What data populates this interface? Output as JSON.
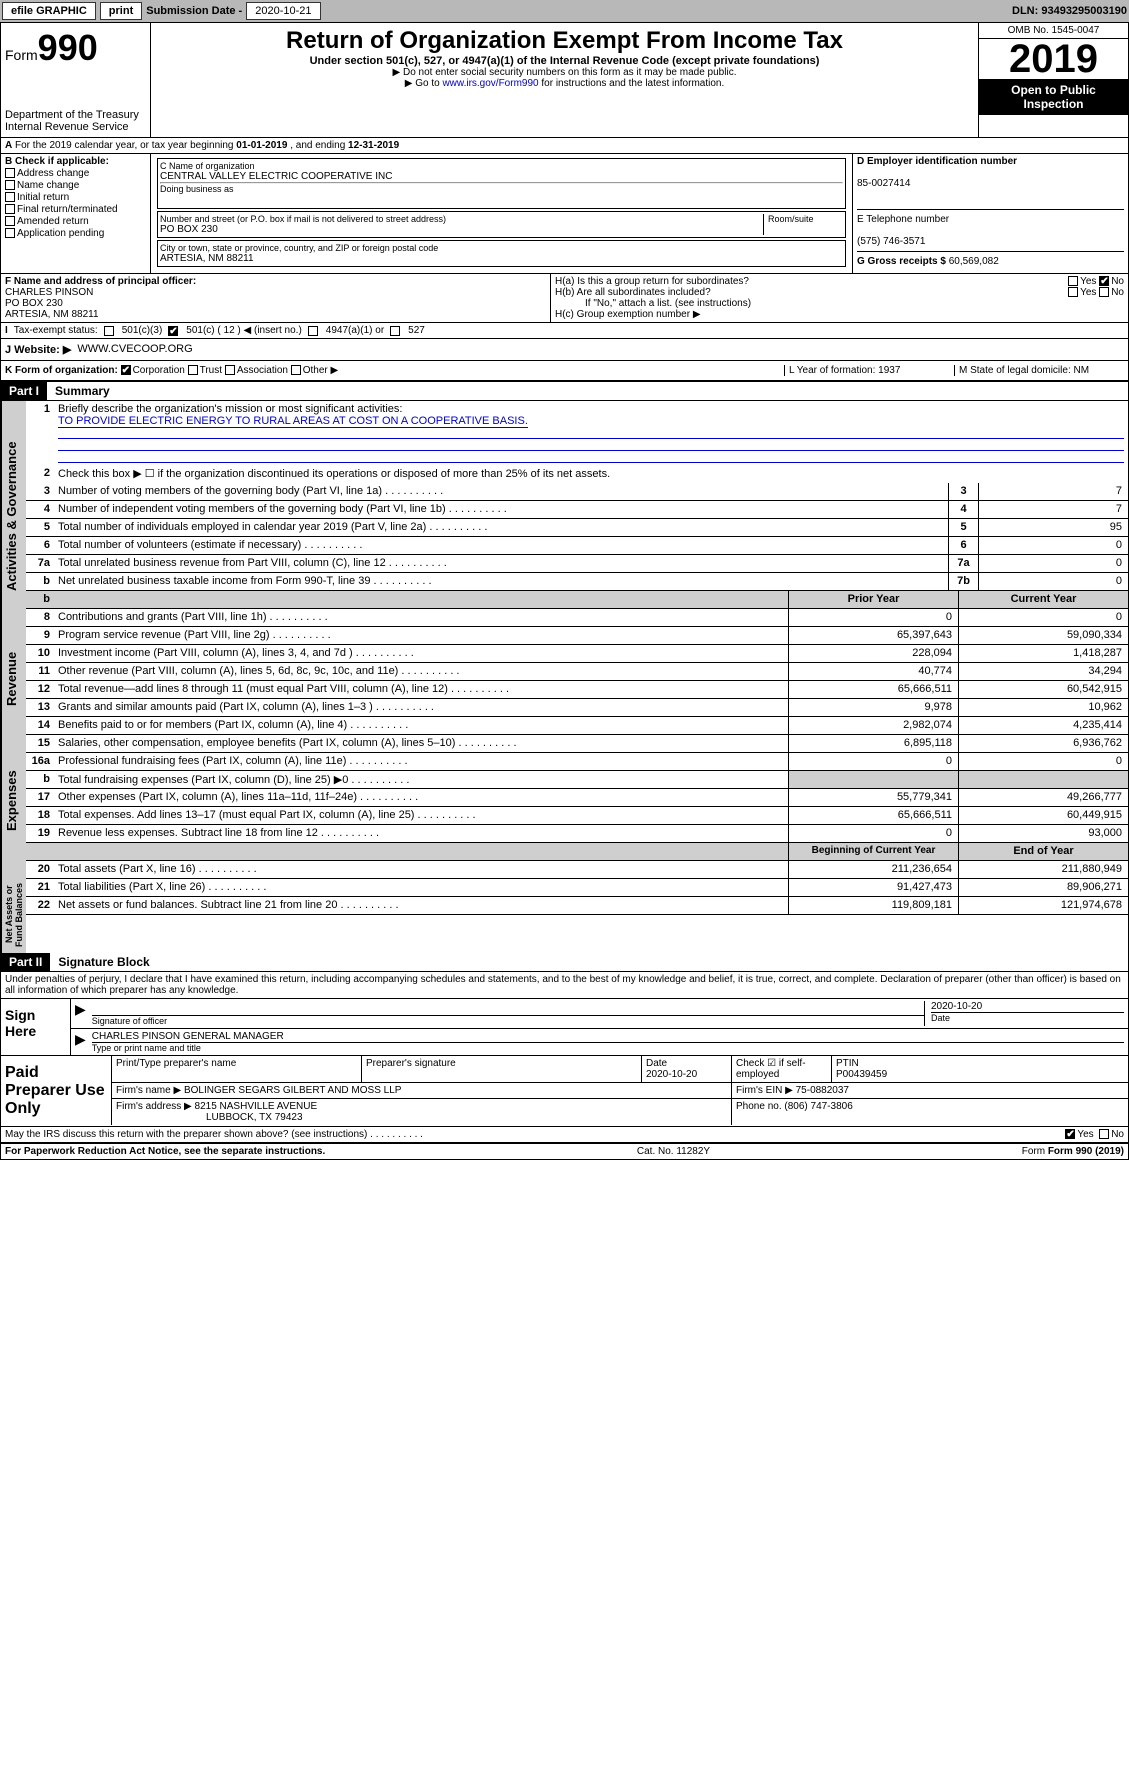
{
  "topbar": {
    "efile": "efile GRAPHIC",
    "print": "print",
    "sub_label": "Submission Date - ",
    "sub_date": "2020-10-21",
    "dln": "DLN: 93493295003190"
  },
  "header": {
    "form": "Form",
    "formnum": "990",
    "dept1": "Department of the Treasury",
    "dept2": "Internal Revenue Service",
    "title": "Return of Organization Exempt From Income Tax",
    "sub1": "Under section 501(c), 527, or 4947(a)(1) of the Internal Revenue Code (except private foundations)",
    "sub2": "▶ Do not enter social security numbers on this form as it may be made public.",
    "sub3": "▶ Go to ",
    "sub3link": "www.irs.gov/Form990",
    "sub3b": " for instructions and the latest information.",
    "omb": "OMB No. 1545-0047",
    "year": "2019",
    "openpub1": "Open to Public",
    "openpub2": "Inspection"
  },
  "rowA": {
    "text": "For the 2019 calendar year, or tax year beginning ",
    "begin": "01-01-2019",
    "mid": " , and ending ",
    "end": "12-31-2019"
  },
  "boxB_label": "B Check if applicable:",
  "boxB": [
    "Address change",
    "Name change",
    "Initial return",
    "Final return/terminated",
    "Amended return",
    "Application pending"
  ],
  "boxC": {
    "label": "C Name of organization",
    "name": "CENTRAL VALLEY ELECTRIC COOPERATIVE INC",
    "dba_label": "Doing business as",
    "addr_label": "Number and street (or P.O. box if mail is not delivered to street address)",
    "room_label": "Room/suite",
    "addr": "PO BOX 230",
    "city_label": "City or town, state or province, country, and ZIP or foreign postal code",
    "city": "ARTESIA, NM  88211"
  },
  "boxD": {
    "label": "D Employer identification number",
    "val": "85-0027414"
  },
  "boxE": {
    "label": "E Telephone number",
    "val": "(575) 746-3571"
  },
  "boxG": {
    "label": "G Gross receipts $ ",
    "val": "60,569,082"
  },
  "boxF": {
    "label": "F Name and address of principal officer:",
    "name": "CHARLES PINSON",
    "addr": "PO BOX 230",
    "city": "ARTESIA, NM  88211"
  },
  "boxH": {
    "a": "H(a)  Is this a group return for subordinates?",
    "b": "H(b)  Are all subordinates included?",
    "bnote": "If \"No,\" attach a list. (see instructions)",
    "c": "H(c)  Group exemption number ▶"
  },
  "taxrow": {
    "label": "Tax-exempt status:",
    "opts": [
      "501(c)(3)",
      "501(c) ( 12 ) ◀ (insert no.)",
      "4947(a)(1) or",
      "527"
    ]
  },
  "rowJ": {
    "label": "J Website: ▶",
    "val": "WWW.CVECOOP.ORG"
  },
  "rowK": {
    "label": "K Form of organization:",
    "opts": [
      "Corporation",
      "Trust",
      "Association",
      "Other ▶"
    ],
    "L": "L Year of formation: 1937",
    "M": "M State of legal domicile: NM"
  },
  "part1": {
    "hdr": "Part I",
    "title": "Summary",
    "l1": "Briefly describe the organization's mission or most significant activities:",
    "l1val": "TO PROVIDE ELECTRIC ENERGY TO RURAL AREAS AT COST ON A COOPERATIVE BASIS.",
    "l2": "Check this box ▶ ☐  if the organization discontinued its operations or disposed of more than 25% of its net assets.",
    "governance_lines": [
      {
        "n": "3",
        "t": "Number of voting members of the governing body (Part VI, line 1a)",
        "box": "3",
        "v": "7"
      },
      {
        "n": "4",
        "t": "Number of independent voting members of the governing body (Part VI, line 1b)",
        "box": "4",
        "v": "7"
      },
      {
        "n": "5",
        "t": "Total number of individuals employed in calendar year 2019 (Part V, line 2a)",
        "box": "5",
        "v": "95"
      },
      {
        "n": "6",
        "t": "Total number of volunteers (estimate if necessary)",
        "box": "6",
        "v": "0"
      },
      {
        "n": "7a",
        "t": "Total unrelated business revenue from Part VIII, column (C), line 12",
        "box": "7a",
        "v": "0"
      },
      {
        "n": "b",
        "t": "Net unrelated business taxable income from Form 990-T, line 39",
        "box": "7b",
        "v": "0"
      }
    ],
    "col_prior": "Prior Year",
    "col_current": "Current Year",
    "revenue_lines": [
      {
        "n": "8",
        "t": "Contributions and grants (Part VIII, line 1h)",
        "p": "0",
        "c": "0"
      },
      {
        "n": "9",
        "t": "Program service revenue (Part VIII, line 2g)",
        "p": "65,397,643",
        "c": "59,090,334"
      },
      {
        "n": "10",
        "t": "Investment income (Part VIII, column (A), lines 3, 4, and 7d )",
        "p": "228,094",
        "c": "1,418,287"
      },
      {
        "n": "11",
        "t": "Other revenue (Part VIII, column (A), lines 5, 6d, 8c, 9c, 10c, and 11e)",
        "p": "40,774",
        "c": "34,294"
      },
      {
        "n": "12",
        "t": "Total revenue—add lines 8 through 11 (must equal Part VIII, column (A), line 12)",
        "p": "65,666,511",
        "c": "60,542,915"
      }
    ],
    "expense_lines": [
      {
        "n": "13",
        "t": "Grants and similar amounts paid (Part IX, column (A), lines 1–3 )",
        "p": "9,978",
        "c": "10,962"
      },
      {
        "n": "14",
        "t": "Benefits paid to or for members (Part IX, column (A), line 4)",
        "p": "2,982,074",
        "c": "4,235,414"
      },
      {
        "n": "15",
        "t": "Salaries, other compensation, employee benefits (Part IX, column (A), lines 5–10)",
        "p": "6,895,118",
        "c": "6,936,762"
      },
      {
        "n": "16a",
        "t": "Professional fundraising fees (Part IX, column (A), line 11e)",
        "p": "0",
        "c": "0"
      },
      {
        "n": "b",
        "t": "Total fundraising expenses (Part IX, column (D), line 25) ▶0",
        "p": "",
        "c": "",
        "shaded": true
      },
      {
        "n": "17",
        "t": "Other expenses (Part IX, column (A), lines 11a–11d, 11f–24e)",
        "p": "55,779,341",
        "c": "49,266,777"
      },
      {
        "n": "18",
        "t": "Total expenses. Add lines 13–17 (must equal Part IX, column (A), line 25)",
        "p": "65,666,511",
        "c": "60,449,915"
      },
      {
        "n": "19",
        "t": "Revenue less expenses. Subtract line 18 from line 12",
        "p": "0",
        "c": "93,000"
      }
    ],
    "col_begin": "Beginning of Current Year",
    "col_end": "End of Year",
    "netassets_lines": [
      {
        "n": "20",
        "t": "Total assets (Part X, line 16)",
        "p": "211,236,654",
        "c": "211,880,949"
      },
      {
        "n": "21",
        "t": "Total liabilities (Part X, line 26)",
        "p": "91,427,473",
        "c": "89,906,271"
      },
      {
        "n": "22",
        "t": "Net assets or fund balances. Subtract line 21 from line 20",
        "p": "119,809,181",
        "c": "121,974,678"
      }
    ],
    "vlabels": [
      "Activities & Governance",
      "Revenue",
      "Expenses",
      "Net Assets or Fund Balances"
    ]
  },
  "part2": {
    "hdr": "Part II",
    "title": "Signature Block",
    "decl": "Under penalties of perjury, I declare that I have examined this return, including accompanying schedules and statements, and to the best of my knowledge and belief, it is true, correct, and complete. Declaration of preparer (other than officer) is based on all information of which preparer has any knowledge."
  },
  "sign": {
    "label": "Sign Here",
    "sig_officer": "Signature of officer",
    "date_label": "Date",
    "date": "2020-10-20",
    "name": "CHARLES PINSON  GENERAL MANAGER",
    "name_label": "Type or print name and title"
  },
  "prep": {
    "label": "Paid Preparer Use Only",
    "h1": "Print/Type preparer's name",
    "h2": "Preparer's signature",
    "h3": "Date",
    "h3v": "2020-10-20",
    "h4": "Check ☑ if self-employed",
    "h5": "PTIN",
    "h5v": "P00439459",
    "firm_label": "Firm's name    ▶",
    "firm": "BOLINGER SEGARS GILBERT AND MOSS LLP",
    "ein_label": "Firm's EIN ▶",
    "ein": "75-0882037",
    "addr_label": "Firm's address ▶",
    "addr1": "8215 NASHVILLE AVENUE",
    "addr2": "LUBBOCK, TX  79423",
    "phone_label": "Phone no.",
    "phone": "(806) 747-3806"
  },
  "footer": {
    "discuss": "May the IRS discuss this return with the preparer shown above? (see instructions)",
    "paperwork": "For Paperwork Reduction Act Notice, see the separate instructions.",
    "cat": "Cat. No. 11282Y",
    "form": "Form 990 (2019)"
  },
  "yes": "Yes",
  "no": "No"
}
